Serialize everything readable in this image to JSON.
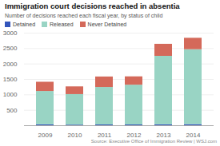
{
  "chart_data": {
    "type": "bar",
    "stacked": true,
    "title": "Immigration court decisions reached in absentia",
    "subtitle": "Number of decisions reached each fiscal year, by status of child",
    "source": "Source: Executive Office of Immigration Review  |  WSJ.com",
    "categories": [
      "2009",
      "2010",
      "2011",
      "2012",
      "2013",
      "2014"
    ],
    "series": [
      {
        "name": "Detained",
        "color": "#3355bb",
        "values": [
          30,
          20,
          25,
          25,
          30,
          35
        ]
      },
      {
        "name": "Released",
        "color": "#99d4c4",
        "values": [
          1080,
          990,
          1215,
          1290,
          2220,
          2430
        ]
      },
      {
        "name": "Never Detained",
        "color": "#d4695a",
        "values": [
          300,
          250,
          340,
          270,
          390,
          370
        ]
      }
    ],
    "ylim": [
      0,
      3000
    ],
    "yticks": [
      {
        "value": 0,
        "label": ""
      },
      500,
      1000,
      1500,
      2000,
      2500,
      3000
    ],
    "grid": true,
    "legend": "upper left"
  }
}
